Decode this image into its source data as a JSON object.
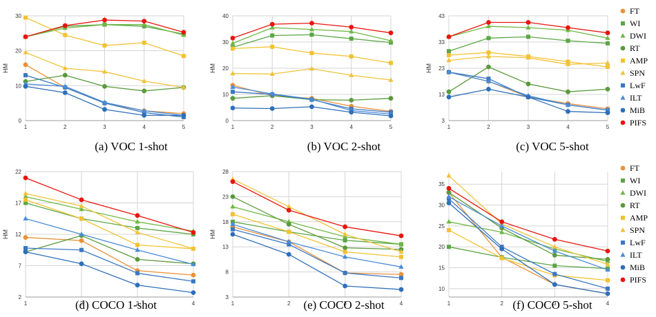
{
  "legend": [
    {
      "name": "FT",
      "color": "#e8913a",
      "marker": "circle"
    },
    {
      "name": "WI",
      "color": "#5aa646",
      "marker": "square"
    },
    {
      "name": "DWI",
      "color": "#6fb845",
      "marker": "triangle"
    },
    {
      "name": "RT",
      "color": "#5a9a3c",
      "marker": "circle"
    },
    {
      "name": "AMP",
      "color": "#f2c230",
      "marker": "square"
    },
    {
      "name": "SPN",
      "color": "#f0c23a",
      "marker": "triangle"
    },
    {
      "name": "LwF",
      "color": "#3a78c2",
      "marker": "square"
    },
    {
      "name": "ILT",
      "color": "#4a8bd6",
      "marker": "triangle"
    },
    {
      "name": "MiB",
      "color": "#2f6fb8",
      "marker": "circle"
    },
    {
      "name": "PIFS",
      "color": "#e8150e",
      "marker": "circle"
    }
  ],
  "chart_data": [
    {
      "type": "line",
      "caption": "(a) VOC 1-shot",
      "ylabel": "HM",
      "x": [
        1,
        2,
        3,
        4,
        5
      ],
      "xticks": [
        "1",
        "2",
        "3",
        "4",
        "5"
      ],
      "ylim": [
        0,
        30
      ],
      "yticks": [
        0,
        10,
        20,
        30
      ],
      "series": [
        {
          "name": "FT",
          "values": [
            16.0,
            9.5,
            5.0,
            2.8,
            2.0
          ]
        },
        {
          "name": "WI",
          "values": [
            24.0,
            27.0,
            27.5,
            27.0,
            24.8
          ]
        },
        {
          "name": "DWI",
          "values": [
            24.0,
            26.5,
            27.5,
            27.5,
            24.5
          ]
        },
        {
          "name": "RT",
          "values": [
            11.2,
            13.0,
            9.8,
            8.5,
            9.5
          ]
        },
        {
          "name": "AMP",
          "values": [
            29.5,
            24.5,
            21.5,
            22.3,
            18.5
          ]
        },
        {
          "name": "SPN",
          "values": [
            19.5,
            15.0,
            14.0,
            11.3,
            9.5
          ]
        },
        {
          "name": "LwF",
          "values": [
            13.0,
            9.5,
            5.0,
            2.3,
            1.0
          ]
        },
        {
          "name": "ILT",
          "values": [
            10.5,
            9.8,
            5.2,
            2.8,
            1.5
          ]
        },
        {
          "name": "MiB",
          "values": [
            9.8,
            8.0,
            3.2,
            1.5,
            1.5
          ]
        },
        {
          "name": "PIFS",
          "values": [
            24.0,
            27.2,
            28.8,
            28.5,
            25.3
          ]
        }
      ]
    },
    {
      "type": "line",
      "caption": "(b) VOC 2-shot",
      "ylabel": "HM",
      "x": [
        1,
        2,
        3,
        4,
        5
      ],
      "xticks": [
        "1",
        "2",
        "3",
        "4",
        "5"
      ],
      "ylim": [
        0,
        40
      ],
      "yticks": [
        0,
        10,
        20,
        30,
        40
      ],
      "series": [
        {
          "name": "FT",
          "values": [
            13.5,
            9.5,
            8.5,
            5.5,
            3.5
          ]
        },
        {
          "name": "WI",
          "values": [
            28.0,
            32.5,
            32.8,
            31.3,
            29.8
          ]
        },
        {
          "name": "DWI",
          "values": [
            29.5,
            35.5,
            34.8,
            34.0,
            30.5
          ]
        },
        {
          "name": "RT",
          "values": [
            8.5,
            9.5,
            8.0,
            7.8,
            8.5
          ]
        },
        {
          "name": "AMP",
          "values": [
            27.5,
            28.2,
            25.8,
            24.5,
            22.0
          ]
        },
        {
          "name": "SPN",
          "values": [
            18.0,
            17.8,
            19.8,
            17.3,
            15.5
          ]
        },
        {
          "name": "LwF",
          "values": [
            11.0,
            10.0,
            8.0,
            4.5,
            3.2
          ]
        },
        {
          "name": "ILT",
          "values": [
            12.8,
            10.2,
            8.2,
            3.8,
            2.5
          ]
        },
        {
          "name": "MiB",
          "values": [
            4.8,
            4.6,
            5.3,
            3.2,
            1.8
          ]
        },
        {
          "name": "PIFS",
          "values": [
            31.5,
            36.8,
            37.2,
            35.7,
            33.5
          ]
        }
      ]
    },
    {
      "type": "line",
      "caption": "(c) VOC 5-shot",
      "ylabel": "HM",
      "x": [
        1,
        2,
        3,
        4,
        5
      ],
      "xticks": [
        "1",
        "2",
        "3",
        "4",
        "5"
      ],
      "ylim": [
        3,
        43
      ],
      "yticks": [
        3,
        13,
        23,
        33,
        43
      ],
      "series": [
        {
          "name": "FT",
          "values": [
            21.5,
            18.0,
            12.0,
            9.5,
            7.5
          ]
        },
        {
          "name": "WI",
          "values": [
            29.5,
            34.5,
            35.0,
            33.5,
            32.5
          ]
        },
        {
          "name": "DWI",
          "values": [
            35.0,
            39.0,
            38.5,
            37.5,
            34.5
          ]
        },
        {
          "name": "RT",
          "values": [
            14.0,
            23.5,
            17.0,
            14.0,
            15.0
          ]
        },
        {
          "name": "AMP",
          "values": [
            28.0,
            29.0,
            27.5,
            25.5,
            23.5
          ]
        },
        {
          "name": "SPN",
          "values": [
            26.0,
            27.5,
            27.0,
            24.5,
            25.0
          ]
        },
        {
          "name": "LwF",
          "values": [
            21.5,
            19.0,
            12.0,
            9.0,
            7.0
          ]
        },
        {
          "name": "ILT",
          "values": [
            21.5,
            18.0,
            12.5,
            9.0,
            7.0
          ]
        },
        {
          "name": "MiB",
          "values": [
            12.0,
            15.0,
            12.0,
            6.5,
            6.0
          ]
        },
        {
          "name": "PIFS",
          "values": [
            35.0,
            40.5,
            40.5,
            38.5,
            36.5
          ]
        }
      ]
    },
    {
      "type": "line",
      "caption": "(d) COCO 1-shot",
      "ylabel": "HM",
      "x": [
        1,
        2,
        3,
        4
      ],
      "xticks": [
        "1",
        "2",
        "3",
        "4"
      ],
      "ylim": [
        2,
        22
      ],
      "yticks": [
        2,
        7,
        12,
        17,
        22
      ],
      "series": [
        {
          "name": "FT",
          "values": [
            11.5,
            11.0,
            6.2,
            5.5
          ]
        },
        {
          "name": "WI",
          "values": [
            17.0,
            14.5,
            13.0,
            12.0
          ]
        },
        {
          "name": "DWI",
          "values": [
            18.0,
            16.0,
            14.0,
            12.5
          ]
        },
        {
          "name": "RT",
          "values": [
            9.2,
            11.8,
            8.0,
            7.3
          ]
        },
        {
          "name": "AMP",
          "values": [
            17.5,
            14.5,
            10.3,
            9.7
          ]
        },
        {
          "name": "SPN",
          "values": [
            18.5,
            16.5,
            12.3,
            9.7
          ]
        },
        {
          "name": "LwF",
          "values": [
            9.8,
            9.5,
            5.8,
            4.5
          ]
        },
        {
          "name": "ILT",
          "values": [
            14.5,
            12.0,
            9.5,
            7.2
          ]
        },
        {
          "name": "MiB",
          "values": [
            9.2,
            7.3,
            3.9,
            2.7
          ]
        },
        {
          "name": "PIFS",
          "values": [
            21.0,
            17.5,
            15.0,
            12.3
          ]
        }
      ]
    },
    {
      "type": "line",
      "caption": "(e) COCO 2-shot",
      "ylabel": "HM",
      "x": [
        1,
        2,
        3,
        4
      ],
      "xticks": [
        "1",
        "2",
        "3",
        "4"
      ],
      "ylim": [
        3,
        28
      ],
      "yticks": [
        3,
        8,
        13,
        18,
        23,
        28
      ],
      "series": [
        {
          "name": "FT",
          "values": [
            17.0,
            14.0,
            7.8,
            7.5
          ]
        },
        {
          "name": "WI",
          "values": [
            18.0,
            16.0,
            14.3,
            13.5
          ]
        },
        {
          "name": "DWI",
          "values": [
            21.0,
            18.0,
            15.0,
            13.5
          ]
        },
        {
          "name": "RT",
          "values": [
            23.0,
            17.5,
            12.8,
            12.5
          ]
        },
        {
          "name": "AMP",
          "values": [
            19.5,
            16.0,
            12.0,
            11.0
          ]
        },
        {
          "name": "SPN",
          "values": [
            26.5,
            21.0,
            15.5,
            12.0
          ]
        },
        {
          "name": "LwF",
          "values": [
            16.5,
            13.5,
            7.8,
            6.8
          ]
        },
        {
          "name": "ILT",
          "values": [
            17.5,
            14.0,
            11.0,
            9.0
          ]
        },
        {
          "name": "MiB",
          "values": [
            15.5,
            11.5,
            5.2,
            4.5
          ]
        },
        {
          "name": "PIFS",
          "values": [
            26.0,
            20.3,
            17.0,
            15.2
          ]
        }
      ]
    },
    {
      "type": "line",
      "caption": "(f) COCO 5-shot",
      "ylabel": "",
      "x": [
        1,
        2,
        3,
        4
      ],
      "xticks": [
        "1",
        "2",
        "3",
        "4"
      ],
      "ylim": [
        8,
        38
      ],
      "yticks": [
        10,
        15,
        20,
        25,
        30,
        35
      ],
      "series": [
        {
          "name": "FT",
          "values": [
            33.0,
            17.5,
            11.0,
            8.8
          ]
        },
        {
          "name": "WI",
          "values": [
            20.0,
            17.5,
            15.5,
            14.8
          ]
        },
        {
          "name": "DWI",
          "values": [
            26.0,
            23.5,
            19.5,
            16.5
          ]
        },
        {
          "name": "RT",
          "values": [
            33.0,
            24.5,
            18.0,
            17.0
          ]
        },
        {
          "name": "AMP",
          "values": [
            24.0,
            17.3,
            13.2,
            12.0
          ]
        },
        {
          "name": "SPN",
          "values": [
            37.0,
            25.5,
            20.0,
            15.8
          ]
        },
        {
          "name": "LwF",
          "values": [
            31.5,
            20.0,
            13.5,
            10.0
          ]
        },
        {
          "name": "ILT",
          "values": [
            32.0,
            25.0,
            19.0,
            14.5
          ]
        },
        {
          "name": "MiB",
          "values": [
            30.5,
            19.5,
            11.0,
            8.8
          ]
        },
        {
          "name": "PIFS",
          "values": [
            34.0,
            26.0,
            21.8,
            19.0
          ]
        }
      ]
    }
  ]
}
